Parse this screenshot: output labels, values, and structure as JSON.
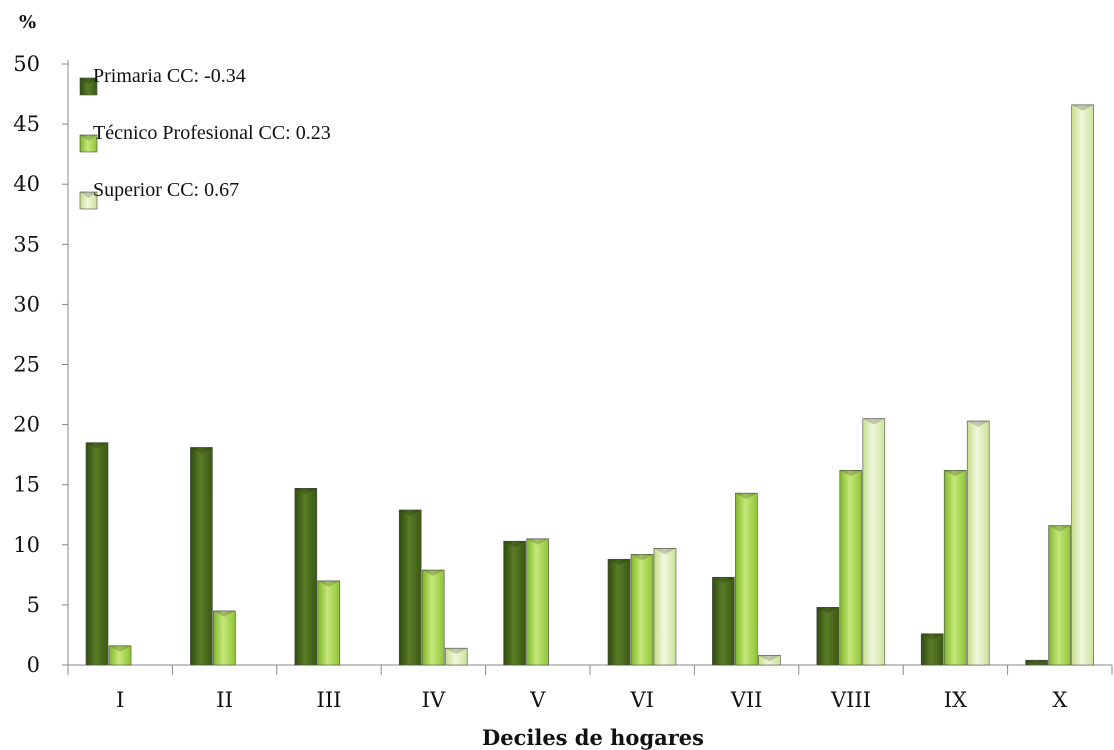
{
  "chart_data": {
    "type": "bar",
    "unit_label": "%",
    "xlabel": "Deciles de hogares",
    "ylabel": "",
    "ylim": [
      0,
      50
    ],
    "yticks": [
      0,
      5,
      10,
      15,
      20,
      25,
      30,
      35,
      40,
      45,
      50
    ],
    "grid": false,
    "legend_position": "top-left",
    "categories": [
      "I",
      "II",
      "III",
      "IV",
      "V",
      "VI",
      "VII",
      "VIII",
      "IX",
      "X"
    ],
    "series": [
      {
        "name": "Primaria CC: -0.34",
        "color": "#4a6b1c",
        "values": [
          18.5,
          18.1,
          14.7,
          12.9,
          10.3,
          8.8,
          7.3,
          4.8,
          2.6,
          0.4
        ]
      },
      {
        "name": "Técnico Profesional CC: 0.23",
        "color": "#9ccb3f",
        "values": [
          1.6,
          4.5,
          7.0,
          7.9,
          10.5,
          9.2,
          14.3,
          16.2,
          16.2,
          11.6
        ]
      },
      {
        "name": "Superior CC: 0.67",
        "color": "#d3e6a6",
        "values": [
          0,
          0,
          0,
          1.4,
          0,
          9.7,
          0.8,
          20.5,
          20.3,
          46.6
        ]
      }
    ]
  }
}
